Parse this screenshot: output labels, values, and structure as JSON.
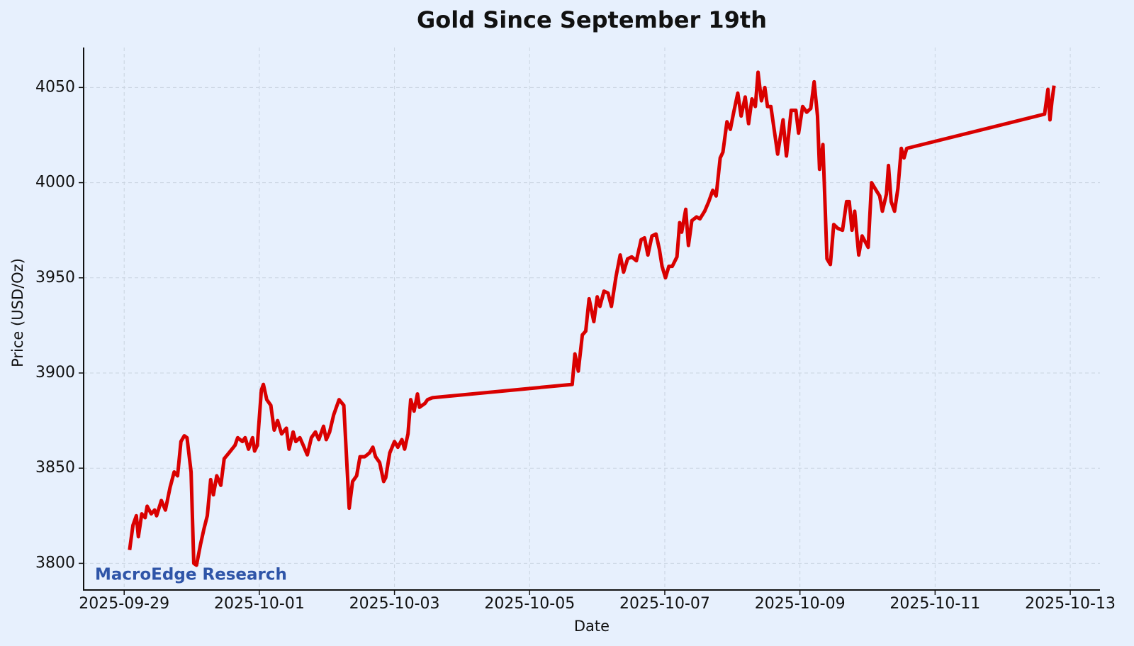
{
  "chart_data": {
    "type": "line",
    "title": "Gold Since September 19th",
    "xlabel": "Date",
    "ylabel": "Price (USD/Oz)",
    "watermark": "MacroEdge Research",
    "grid": true,
    "xlim": [
      20359.4,
      20374.44
    ],
    "ylim": [
      3786,
      4071
    ],
    "xticks": [
      {
        "value": 20360,
        "label": "2025-09-29"
      },
      {
        "value": 20362,
        "label": "2025-10-01"
      },
      {
        "value": 20364,
        "label": "2025-10-03"
      },
      {
        "value": 20366,
        "label": "2025-10-05"
      },
      {
        "value": 20368,
        "label": "2025-10-07"
      },
      {
        "value": 20370,
        "label": "2025-10-09"
      },
      {
        "value": 20372,
        "label": "2025-10-11"
      },
      {
        "value": 20374,
        "label": "2025-10-13"
      }
    ],
    "yticks": [
      3800,
      3850,
      3900,
      3950,
      4000,
      4050
    ],
    "x": [
      20360.08,
      20360.13,
      20360.18,
      20360.21,
      20360.26,
      20360.31,
      20360.34,
      20360.4,
      20360.45,
      20360.48,
      20360.55,
      20360.61,
      20360.68,
      20360.74,
      20360.79,
      20360.84,
      20360.89,
      20360.93,
      20360.99,
      20361.03,
      20361.07,
      20361.13,
      20361.18,
      20361.23,
      20361.28,
      20361.32,
      20361.37,
      20361.43,
      20361.48,
      20361.55,
      20361.64,
      20361.68,
      20361.75,
      20361.79,
      20361.84,
      20361.9,
      20361.93,
      20361.97,
      20362.03,
      20362.06,
      20362.11,
      20362.17,
      20362.22,
      20362.27,
      20362.33,
      20362.4,
      20362.44,
      20362.5,
      20362.54,
      20362.6,
      20362.65,
      20362.71,
      20362.77,
      20362.83,
      20362.88,
      20362.95,
      20362.99,
      20363.04,
      20363.1,
      20363.18,
      20363.25,
      20363.33,
      20363.38,
      20363.44,
      20363.49,
      20363.56,
      20363.63,
      20363.68,
      20363.72,
      20363.78,
      20363.84,
      20363.87,
      20363.93,
      20364.0,
      20364.05,
      20364.11,
      20364.15,
      20364.2,
      20364.24,
      20364.29,
      20364.34,
      20364.37,
      20364.45,
      20364.49,
      20364.56,
      20366.63,
      20366.67,
      20366.72,
      20366.78,
      20366.83,
      20366.88,
      20366.95,
      20367.0,
      20367.04,
      20367.1,
      20367.16,
      20367.21,
      20367.28,
      20367.34,
      20367.39,
      20367.45,
      20367.51,
      20367.58,
      20367.65,
      20367.7,
      20367.75,
      20367.81,
      20367.87,
      20367.92,
      20367.96,
      20368.01,
      20368.06,
      20368.11,
      20368.18,
      20368.22,
      20368.25,
      20368.31,
      20368.35,
      20368.4,
      20368.47,
      20368.52,
      20368.59,
      20368.65,
      20368.71,
      20368.76,
      20368.82,
      20368.86,
      20368.92,
      20368.97,
      20369.02,
      20369.08,
      20369.13,
      20369.19,
      20369.24,
      20369.29,
      20369.34,
      20369.38,
      20369.43,
      20369.48,
      20369.52,
      20369.57,
      20369.67,
      20369.75,
      20369.8,
      20369.87,
      20369.94,
      20369.98,
      20370.04,
      20370.1,
      20370.16,
      20370.21,
      20370.26,
      20370.29,
      20370.34,
      20370.4,
      20370.45,
      20370.5,
      20370.56,
      20370.63,
      20370.69,
      20370.73,
      20370.77,
      20370.81,
      20370.87,
      20370.92,
      20371.01,
      20371.06,
      20371.11,
      20371.18,
      20371.22,
      20371.28,
      20371.31,
      20371.35,
      20371.4,
      20371.45,
      20371.5,
      20371.54,
      20371.58,
      20373.62,
      20373.67,
      20373.7,
      20373.73,
      20373.76
    ],
    "series": [
      {
        "color": "#d90000",
        "values": [
          3807,
          3820,
          3825,
          3814,
          3826,
          3824,
          3830,
          3826,
          3828,
          3825,
          3833,
          3828,
          3840,
          3848,
          3846,
          3864,
          3867,
          3866,
          3848,
          3800,
          3799,
          3810,
          3818,
          3825,
          3844,
          3836,
          3846,
          3841,
          3855,
          3858,
          3862,
          3866,
          3864,
          3866,
          3860,
          3866,
          3859,
          3862,
          3891,
          3894,
          3886,
          3883,
          3870,
          3875,
          3868,
          3871,
          3860,
          3869,
          3864,
          3866,
          3862,
          3857,
          3866,
          3869,
          3865,
          3872,
          3865,
          3869,
          3878,
          3886,
          3883,
          3829,
          3843,
          3846,
          3856,
          3856,
          3858,
          3861,
          3856,
          3853,
          3843,
          3845,
          3858,
          3864,
          3861,
          3865,
          3860,
          3868,
          3886,
          3880,
          3889,
          3882,
          3884,
          3886,
          3887,
          3894,
          3910,
          3901,
          3920,
          3922,
          3939,
          3927,
          3940,
          3935,
          3943,
          3942,
          3935,
          3951,
          3962,
          3953,
          3960,
          3961,
          3959,
          3970,
          3971,
          3962,
          3972,
          3973,
          3965,
          3956,
          3950,
          3956,
          3956,
          3961,
          3979,
          3974,
          3986,
          3967,
          3980,
          3982,
          3981,
          3985,
          3990,
          3996,
          3993,
          4013,
          4016,
          4032,
          4028,
          4037,
          4047,
          4035,
          4045,
          4031,
          4044,
          4040,
          4058,
          4043,
          4050,
          4040,
          4040,
          4015,
          4033,
          4014,
          4038,
          4038,
          4026,
          4040,
          4037,
          4039,
          4053,
          4035,
          4007,
          4020,
          3960,
          3957,
          3978,
          3976,
          3975,
          3990,
          3990,
          3975,
          3985,
          3962,
          3972,
          3966,
          4000,
          3997,
          3993,
          3985,
          3994,
          4009,
          3990,
          3985,
          3997,
          4018,
          4013,
          4018,
          4036,
          4049,
          4033,
          4043,
          4051
        ]
      }
    ]
  }
}
